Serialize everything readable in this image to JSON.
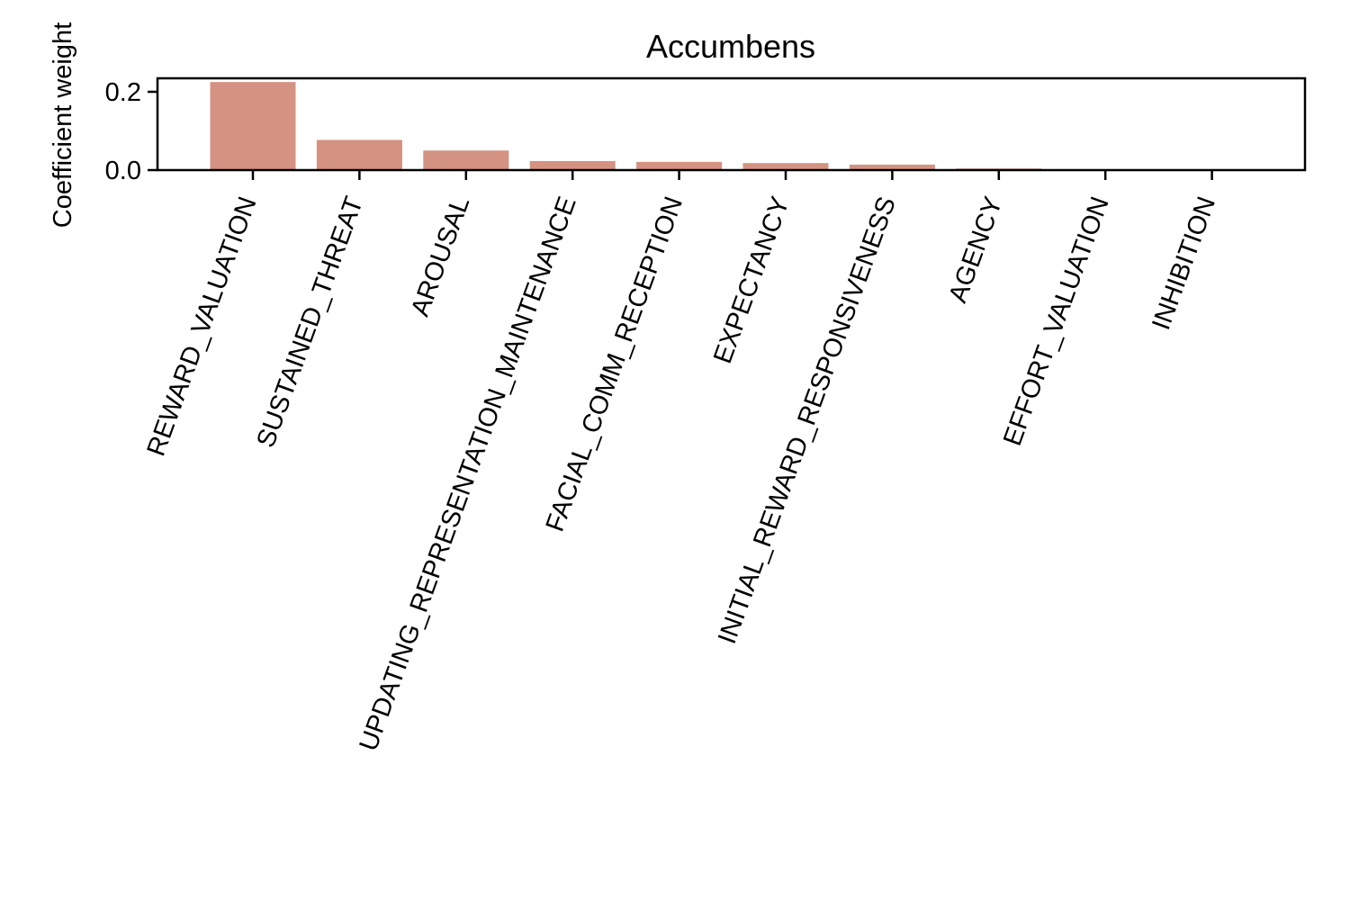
{
  "chart_data": {
    "type": "bar",
    "title": "Accumbens",
    "xlabel": "",
    "ylabel": "Coefficient weight",
    "categories": [
      "REWARD_VALUATION",
      "SUSTAINED_THREAT",
      "AROUSAL",
      "UPDATING_REPRESENTATION_MAINTENANCE",
      "FACIAL_COMM_RECEPTION",
      "EXPECTANCY",
      "INITIAL_REWARD_RESPONSIVENESS",
      "AGENCY",
      "EFFORT_VALUATION",
      "INHIBITION"
    ],
    "values": [
      0.225,
      0.077,
      0.05,
      0.023,
      0.021,
      0.018,
      0.014,
      0.004,
      0.001,
      0.0
    ],
    "ylim": [
      0,
      0.235
    ],
    "yticks": [
      0.0,
      0.2
    ],
    "ytick_labels": [
      "0.0",
      "0.2"
    ],
    "bar_color": "#d49282",
    "grid": false,
    "legend": "none"
  }
}
